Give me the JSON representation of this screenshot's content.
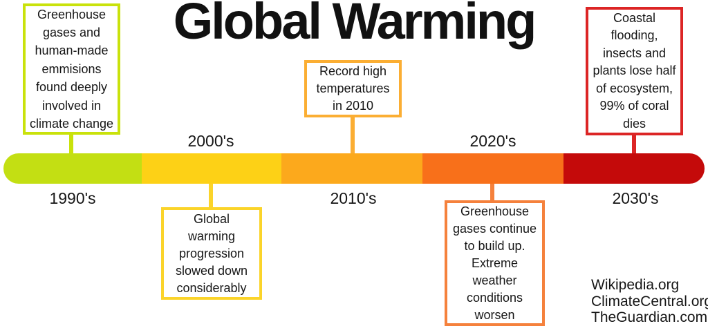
{
  "title": "Global Warming",
  "colors": {
    "background": "#ffffff",
    "text": "#161616",
    "segment_1990s": "#c3df13",
    "segment_2000s": "#fdd116",
    "segment_2010s": "#fca91c",
    "segment_2020s": "#f8701a",
    "segment_2030s": "#c40a0a",
    "callout_greenhouse_border": "#c9e20b",
    "callout_record_border": "#fbae33",
    "callout_coastal_border": "#dc2525",
    "callout_progress_border": "#fbd42a",
    "callout_buildup_border": "#f5813c"
  },
  "timeline": {
    "decades": [
      {
        "label": "1990's",
        "color": "#c3df13",
        "label_side": "below"
      },
      {
        "label": "2000's",
        "color": "#fdd116",
        "label_side": "above"
      },
      {
        "label": "2010's",
        "color": "#fca91c",
        "label_side": "below"
      },
      {
        "label": "2020's",
        "color": "#f8701a",
        "label_side": "above"
      },
      {
        "label": "2030's",
        "color": "#c40a0a",
        "label_side": "below"
      }
    ]
  },
  "callouts": [
    {
      "id": "greenhouse-emissions",
      "decade": "1990's",
      "text": "Greenhouse\ngases and\nhuman-made\nemmisions\nfound deeply\ninvolved in\nclimate change",
      "border_color": "#c9e20b",
      "position": "above-timeline"
    },
    {
      "id": "record-temperatures",
      "decade": "2010's",
      "text": "Record high\ntemperatures\nin 2010",
      "border_color": "#fbae33",
      "position": "above-timeline"
    },
    {
      "id": "coastal-flooding",
      "decade": "2030's",
      "text": "Coastal\nflooding,\ninsects and\nplants lose half\nof ecosystem,\n99% of coral\ndies",
      "border_color": "#dc2525",
      "position": "above-timeline"
    },
    {
      "id": "progression-slowed",
      "decade": "2000's",
      "text": "Global\nwarming\nprogression\nslowed down\nconsiderably",
      "border_color": "#fbd42a",
      "position": "below-timeline"
    },
    {
      "id": "gases-build-up",
      "decade": "2020's",
      "text": "Greenhouse\ngases continue\nto build up.\nExtreme\nweather\nconditions\nworsen",
      "border_color": "#f5813c",
      "position": "below-timeline"
    }
  ],
  "sources": [
    "Wikipedia.org",
    "ClimateCentral.org",
    "TheGuardian.com"
  ]
}
